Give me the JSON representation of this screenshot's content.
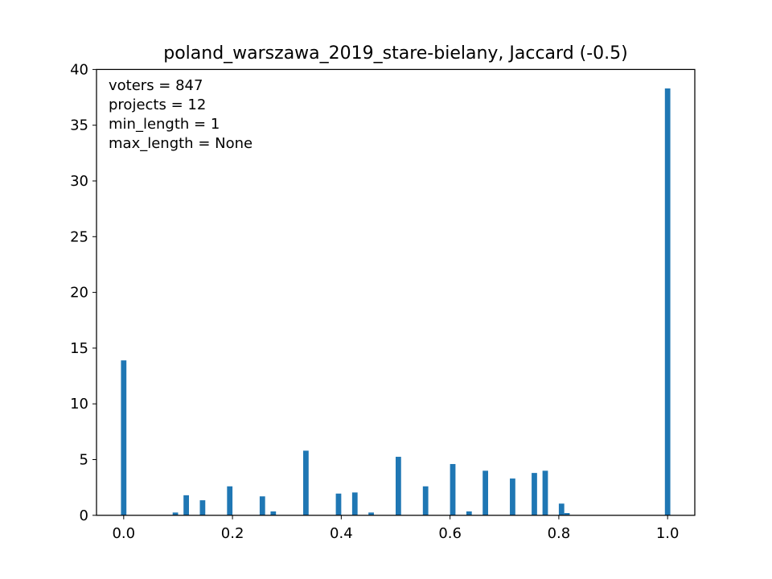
{
  "chart_data": {
    "type": "bar",
    "title": "poland_warszawa_2019_stare-bielany, Jaccard (-0.5)",
    "xlabel": "",
    "ylabel": "",
    "xlim": [
      -0.05,
      1.05
    ],
    "ylim": [
      0,
      40
    ],
    "grid": false,
    "bar_width": 0.01,
    "color": "#1f77b4",
    "x_ticks": [
      "0.0",
      "0.2",
      "0.4",
      "0.6",
      "0.8",
      "1.0"
    ],
    "y_ticks": [
      "0",
      "5",
      "10",
      "15",
      "20",
      "25",
      "30",
      "35",
      "40"
    ],
    "annotations": [
      "voters = 847",
      "projects = 12",
      "min_length = 1",
      "max_length = None"
    ],
    "bars": [
      {
        "x": 0.0,
        "y": 13.9
      },
      {
        "x": 0.095,
        "y": 0.25
      },
      {
        "x": 0.115,
        "y": 1.8
      },
      {
        "x": 0.145,
        "y": 1.35
      },
      {
        "x": 0.195,
        "y": 2.6
      },
      {
        "x": 0.255,
        "y": 1.7
      },
      {
        "x": 0.275,
        "y": 0.35
      },
      {
        "x": 0.335,
        "y": 5.8
      },
      {
        "x": 0.395,
        "y": 1.95
      },
      {
        "x": 0.425,
        "y": 2.05
      },
      {
        "x": 0.455,
        "y": 0.25
      },
      {
        "x": 0.505,
        "y": 5.25
      },
      {
        "x": 0.555,
        "y": 2.6
      },
      {
        "x": 0.605,
        "y": 4.6
      },
      {
        "x": 0.635,
        "y": 0.35
      },
      {
        "x": 0.665,
        "y": 4.0
      },
      {
        "x": 0.715,
        "y": 3.3
      },
      {
        "x": 0.755,
        "y": 3.8
      },
      {
        "x": 0.775,
        "y": 4.0
      },
      {
        "x": 0.805,
        "y": 1.05
      },
      {
        "x": 0.815,
        "y": 0.2
      },
      {
        "x": 1.0,
        "y": 38.3
      }
    ]
  }
}
